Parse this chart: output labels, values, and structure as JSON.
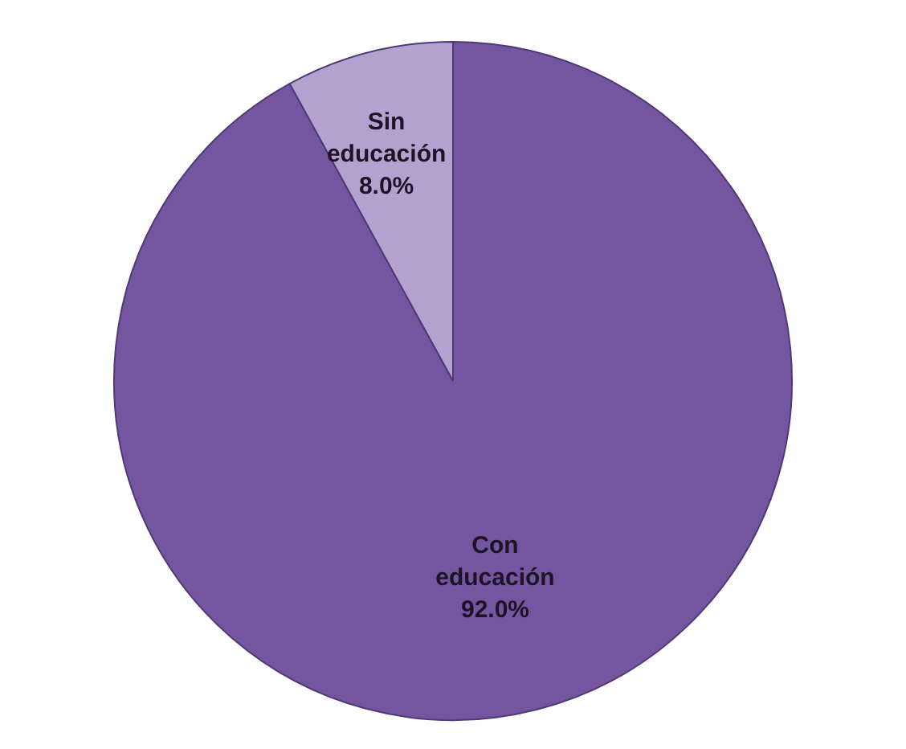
{
  "chart_data": {
    "type": "pie",
    "categories": [
      "Con educación",
      "Sin educación"
    ],
    "values": [
      92.0,
      8.0
    ],
    "colors": [
      "#7455a0",
      "#b3a1d0"
    ],
    "value_labels": [
      "92.0%",
      "8.0%"
    ]
  }
}
